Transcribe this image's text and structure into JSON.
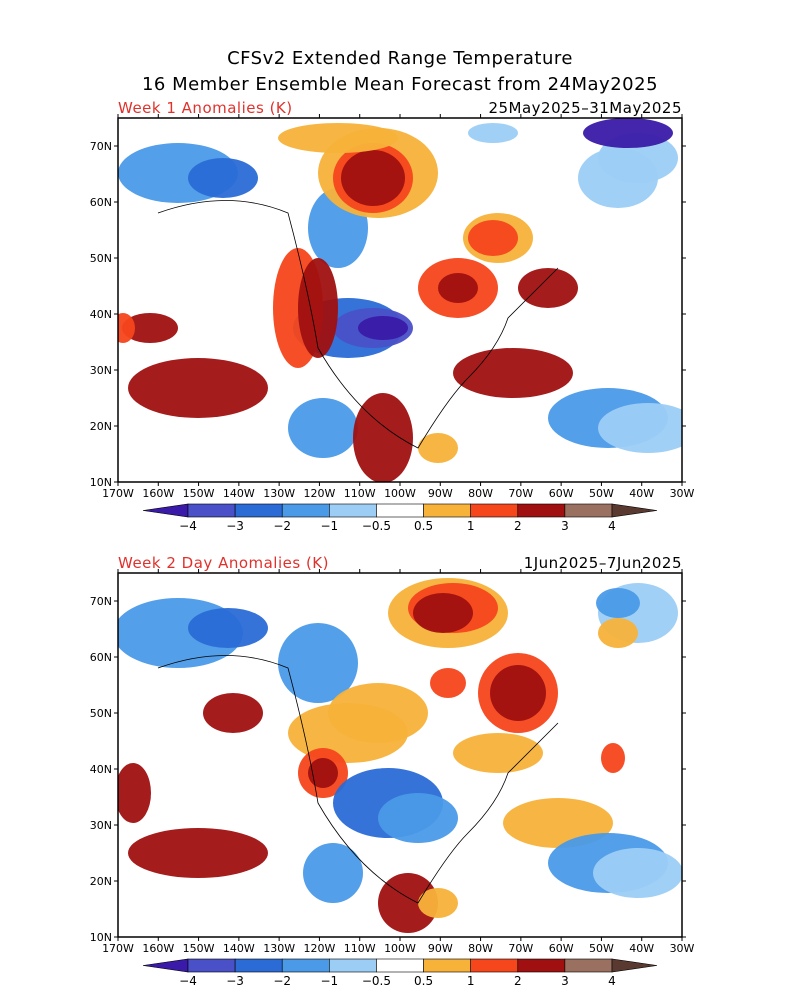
{
  "header": {
    "title_line1": "CFSv2 Extended Range Temperature",
    "title_line2": "16 Member Ensemble Mean Forecast from 24May2025"
  },
  "map_axes": {
    "lat_labels": [
      "70N",
      "60N",
      "50N",
      "40N",
      "30N",
      "20N",
      "10N"
    ],
    "lon_labels": [
      "170W",
      "160W",
      "150W",
      "140W",
      "130W",
      "120W",
      "110W",
      "100W",
      "90W",
      "80W",
      "70W",
      "60W",
      "50W",
      "40W",
      "30W"
    ]
  },
  "panels": [
    {
      "id": "week1",
      "label": "Week 1 Anomalies (K)",
      "date_range": "25May2025–31May2025"
    },
    {
      "id": "week2",
      "label": "Week 2 Day Anomalies (K)",
      "date_range": "1Jun2025–7Jun2025"
    }
  ],
  "colorbar": {
    "labels": [
      "−4",
      "−3",
      "−2",
      "−1",
      "−0.5",
      "0.5",
      "1",
      "2",
      "3",
      "4"
    ],
    "colors": [
      "#3a1aa8",
      "#4a50c8",
      "#2a6bd6",
      "#4a9ae8",
      "#9ccdf5",
      "#ffffff",
      "#f7b23a",
      "#f5461c",
      "#a01010",
      "#9a7060",
      "#5a3a30"
    ]
  }
}
